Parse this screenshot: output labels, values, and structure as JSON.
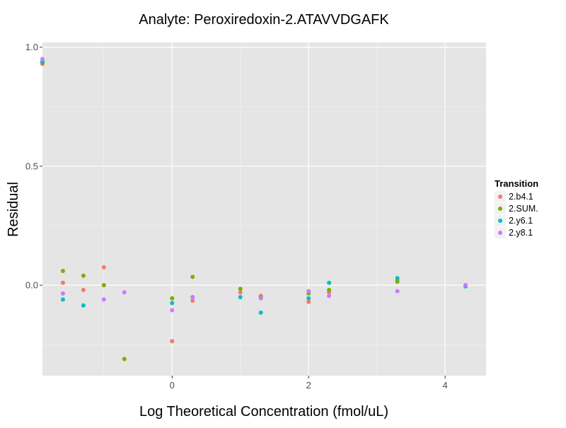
{
  "chart_data": {
    "type": "scatter",
    "title": "Analyte: Peroxiredoxin-2.ATAVVDGAFK",
    "xlabel": "Log Theoretical Concentration (fmol/uL)",
    "ylabel": "Residual",
    "xlim": [
      -1.9,
      4.6
    ],
    "ylim": [
      -0.38,
      1.02
    ],
    "x_ticks": [
      0,
      2,
      4
    ],
    "x_tick_labels": [
      "0",
      "2",
      "4"
    ],
    "y_ticks": [
      0.0,
      0.5,
      1.0
    ],
    "y_tick_labels": [
      "0.0",
      "0.5",
      "1.0"
    ],
    "grid": true,
    "panel_background": "#e5e5e5",
    "legend": {
      "title": "Transition",
      "placement": "right"
    },
    "series": [
      {
        "name": "2.b4.1",
        "color": "#f8766d",
        "points": [
          {
            "x": -1.9,
            "y": 0.93
          },
          {
            "x": -1.6,
            "y": 0.01
          },
          {
            "x": -1.3,
            "y": -0.02
          },
          {
            "x": -1.0,
            "y": 0.075
          },
          {
            "x": 0.0,
            "y": -0.235
          },
          {
            "x": 0.3,
            "y": -0.065
          },
          {
            "x": 1.0,
            "y": -0.03
          },
          {
            "x": 1.3,
            "y": -0.045
          },
          {
            "x": 2.0,
            "y": -0.07
          },
          {
            "x": 2.3,
            "y": -0.03
          },
          {
            "x": 3.3,
            "y": 0.02
          },
          {
            "x": 4.3,
            "y": 0.0
          }
        ]
      },
      {
        "name": "2.SUM.",
        "color": "#7cae00",
        "points": [
          {
            "x": -1.9,
            "y": 0.935
          },
          {
            "x": -1.6,
            "y": 0.06
          },
          {
            "x": -1.3,
            "y": 0.04
          },
          {
            "x": -1.0,
            "y": 0.0
          },
          {
            "x": -0.7,
            "y": -0.31
          },
          {
            "x": 0.0,
            "y": -0.055
          },
          {
            "x": 0.3,
            "y": 0.035
          },
          {
            "x": 1.0,
            "y": -0.015
          },
          {
            "x": 1.3,
            "y": -0.05
          },
          {
            "x": 2.0,
            "y": -0.035
          },
          {
            "x": 2.3,
            "y": -0.02
          },
          {
            "x": 3.3,
            "y": 0.015
          },
          {
            "x": 4.3,
            "y": 0.0
          }
        ]
      },
      {
        "name": "2.y6.1",
        "color": "#00bfc4",
        "points": [
          {
            "x": -1.9,
            "y": 0.94
          },
          {
            "x": -1.6,
            "y": -0.06
          },
          {
            "x": -1.3,
            "y": -0.085
          },
          {
            "x": 0.0,
            "y": -0.075
          },
          {
            "x": 0.3,
            "y": -0.05
          },
          {
            "x": 1.0,
            "y": -0.05
          },
          {
            "x": 1.3,
            "y": -0.115
          },
          {
            "x": 2.0,
            "y": -0.055
          },
          {
            "x": 2.3,
            "y": 0.01
          },
          {
            "x": 3.3,
            "y": 0.03
          },
          {
            "x": 4.3,
            "y": -0.005
          }
        ]
      },
      {
        "name": "2.y8.1",
        "color": "#c77cff",
        "points": [
          {
            "x": -1.9,
            "y": 0.95
          },
          {
            "x": -1.6,
            "y": -0.035
          },
          {
            "x": -1.0,
            "y": -0.06
          },
          {
            "x": -0.7,
            "y": -0.03
          },
          {
            "x": 0.0,
            "y": -0.105
          },
          {
            "x": 0.3,
            "y": -0.05
          },
          {
            "x": 1.3,
            "y": -0.055
          },
          {
            "x": 2.0,
            "y": -0.025
          },
          {
            "x": 2.3,
            "y": -0.045
          },
          {
            "x": 3.3,
            "y": -0.025
          },
          {
            "x": 4.3,
            "y": 0.0
          }
        ]
      }
    ]
  }
}
